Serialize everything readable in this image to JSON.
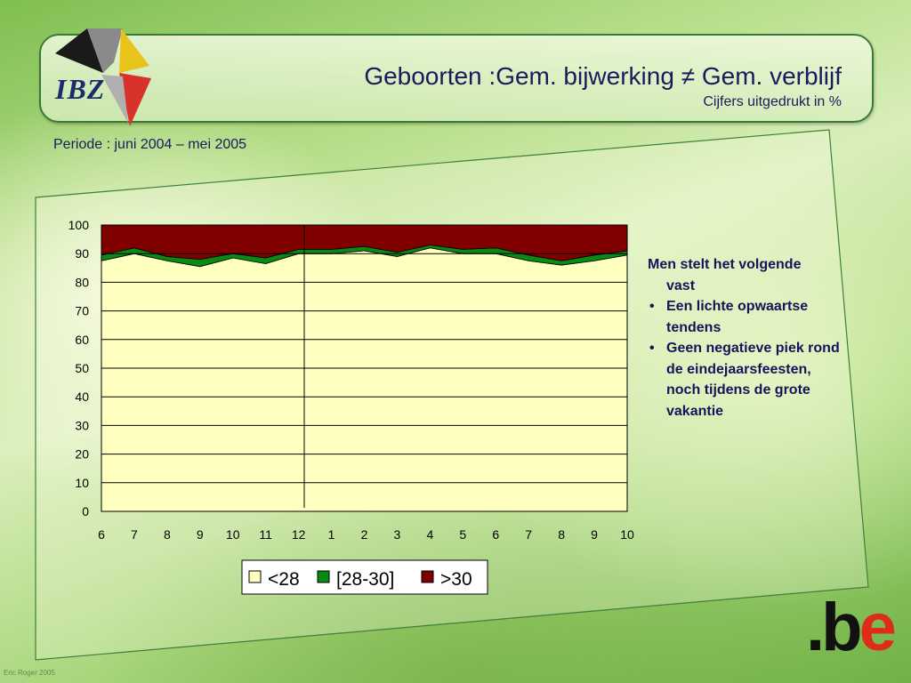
{
  "header": {
    "logo_text": "IBZ",
    "title": "Geboorten :Gem. bijwerking ≠ Gem. verblijf",
    "subtitle": "Cijfers uitgedrukt in  %"
  },
  "period": "Periode : juni 2004 – mei 2005",
  "notes": {
    "intro_line1": "Men stelt het volgende",
    "intro_line2": "vast",
    "bullet_symbol": "•",
    "bullets": [
      "Een lichte opwaartse tendens",
      "Geen negatieve piek rond de eindejaarsfeesten, noch tijdens  de grote vakantie"
    ]
  },
  "brand": {
    "dot": ".",
    "b": "b",
    "e": "e"
  },
  "copyright": "Eric Roger 2005",
  "chart_data": {
    "type": "area",
    "stacked": true,
    "categories": [
      "6",
      "7",
      "8",
      "9",
      "10",
      "11",
      "12",
      "1",
      "2",
      "3",
      "4",
      "5",
      "6",
      "7",
      "8",
      "9",
      "10"
    ],
    "ylim": [
      0,
      100
    ],
    "yticks": [
      0,
      10,
      20,
      30,
      40,
      50,
      60,
      70,
      80,
      90,
      100
    ],
    "grid": true,
    "legend_position": "bottom",
    "series": [
      {
        "name": "<28",
        "color": "#ffffc0",
        "values": [
          87.5,
          90,
          87.5,
          85.5,
          88.5,
          86.5,
          90,
          90,
          91,
          89,
          92,
          90,
          90,
          87.5,
          86,
          87.5,
          89.5
        ]
      },
      {
        "name": "[28-30]",
        "color": "#0a8a12",
        "values": [
          2,
          2,
          1.5,
          2.5,
          1.5,
          2,
          1.5,
          1.5,
          1.5,
          1.5,
          1,
          1.5,
          2,
          2,
          1.5,
          2,
          1.5
        ]
      },
      {
        "name": ">30",
        "color": "#800000",
        "values": [
          10.5,
          8,
          11,
          12,
          10,
          11.5,
          8.5,
          8.5,
          7.5,
          9.5,
          7,
          8.5,
          8,
          10.5,
          12.5,
          10.5,
          9
        ]
      }
    ]
  }
}
